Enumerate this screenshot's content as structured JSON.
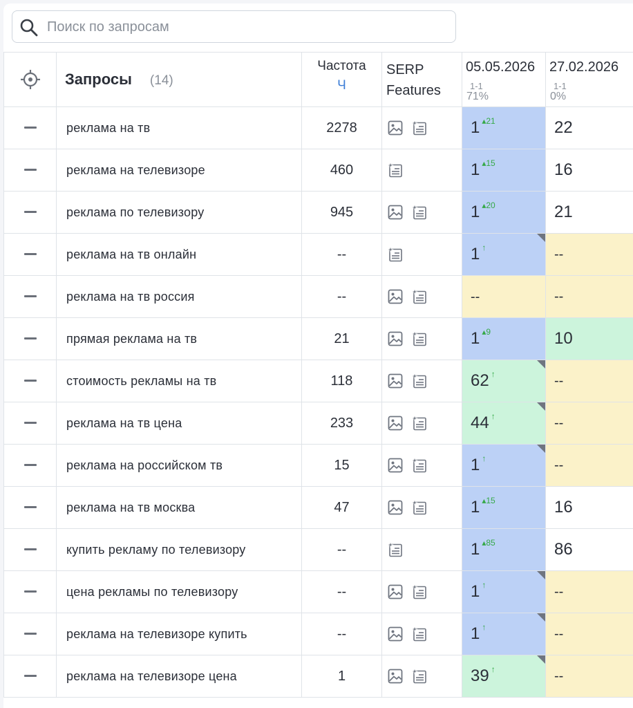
{
  "search": {
    "placeholder": "Поиск по запросам",
    "icon": "search-icon"
  },
  "header": {
    "queries_title": "Запросы",
    "queries_count": "(14)",
    "frequency_label": "Частота",
    "frequency_sub": "Ч",
    "serp_line1": "SERP",
    "serp_line2": "Features",
    "dates": [
      {
        "date": "05.05.2026",
        "range": "1-1",
        "percent": "71%"
      },
      {
        "date": "27.02.2026",
        "range": "1-1",
        "percent": "0%"
      }
    ]
  },
  "colors": {
    "blue_cell": "#bcd1f6",
    "green_cell": "#ccf4dc",
    "yellow_cell": "#fbf2c9",
    "delta": "#36a948",
    "link": "#3f7fd7"
  },
  "rows": [
    {
      "query": "реклама на тв",
      "freq": "2278",
      "serp": [
        "image-icon",
        "sparkle-snippet-icon"
      ],
      "p1": "1",
      "p1_delta": "▴21",
      "p1_color": "blue",
      "p1_corner": false,
      "p2": "22",
      "p2_color": "white"
    },
    {
      "query": "реклама на телевизоре",
      "freq": "460",
      "serp": [
        "sparkle-snippet-icon"
      ],
      "p1": "1",
      "p1_delta": "▴15",
      "p1_color": "blue",
      "p1_corner": false,
      "p2": "16",
      "p2_color": "white"
    },
    {
      "query": "реклама по телевизору",
      "freq": "945",
      "serp": [
        "image-icon",
        "sparkle-snippet-icon"
      ],
      "p1": "1",
      "p1_delta": "▴20",
      "p1_color": "blue",
      "p1_corner": false,
      "p2": "21",
      "p2_color": "white"
    },
    {
      "query": "реклама на тв онлайн",
      "freq": "--",
      "serp": [
        "sparkle-snippet-icon"
      ],
      "p1": "1",
      "p1_delta": "↑",
      "p1_color": "blue",
      "p1_corner": true,
      "p2": "--",
      "p2_color": "yellow"
    },
    {
      "query": "реклама на тв россия",
      "freq": "--",
      "serp": [
        "image-icon",
        "sparkle-snippet-icon"
      ],
      "p1": "--",
      "p1_delta": "",
      "p1_color": "yellow",
      "p1_corner": false,
      "p2": "--",
      "p2_color": "yellow"
    },
    {
      "query": "прямая реклама на тв",
      "freq": "21",
      "serp": [
        "image-icon",
        "sparkle-snippet-icon"
      ],
      "p1": "1",
      "p1_delta": "▴9",
      "p1_color": "blue",
      "p1_corner": false,
      "p2": "10",
      "p2_color": "green"
    },
    {
      "query": "стоимость рекламы на тв",
      "freq": "118",
      "serp": [
        "image-icon",
        "sparkle-snippet-icon"
      ],
      "p1": "62",
      "p1_delta": "↑",
      "p1_color": "green",
      "p1_corner": true,
      "p2": "--",
      "p2_color": "yellow"
    },
    {
      "query": "реклама на тв цена",
      "freq": "233",
      "serp": [
        "image-icon",
        "sparkle-snippet-icon"
      ],
      "p1": "44",
      "p1_delta": "↑",
      "p1_color": "green",
      "p1_corner": true,
      "p2": "--",
      "p2_color": "yellow"
    },
    {
      "query": "реклама на российском тв",
      "freq": "15",
      "serp": [
        "image-icon",
        "sparkle-snippet-icon"
      ],
      "p1": "1",
      "p1_delta": "↑",
      "p1_color": "blue",
      "p1_corner": true,
      "p2": "--",
      "p2_color": "yellow"
    },
    {
      "query": "реклама на тв москва",
      "freq": "47",
      "serp": [
        "image-icon",
        "sparkle-snippet-icon"
      ],
      "p1": "1",
      "p1_delta": "▴15",
      "p1_color": "blue",
      "p1_corner": false,
      "p2": "16",
      "p2_color": "white"
    },
    {
      "query": "купить рекламу по телевизору",
      "freq": "--",
      "serp": [
        "sparkle-snippet-icon"
      ],
      "p1": "1",
      "p1_delta": "▴85",
      "p1_color": "blue",
      "p1_corner": false,
      "p2": "86",
      "p2_color": "white"
    },
    {
      "query": "цена рекламы по телевизору",
      "freq": "--",
      "serp": [
        "image-icon",
        "sparkle-snippet-icon"
      ],
      "p1": "1",
      "p1_delta": "↑",
      "p1_color": "blue",
      "p1_corner": true,
      "p2": "--",
      "p2_color": "yellow"
    },
    {
      "query": "реклама на телевизоре купить",
      "freq": "--",
      "serp": [
        "image-icon",
        "sparkle-snippet-icon"
      ],
      "p1": "1",
      "p1_delta": "↑",
      "p1_color": "blue",
      "p1_corner": true,
      "p2": "--",
      "p2_color": "yellow"
    },
    {
      "query": "реклама на телевизоре цена",
      "freq": "1",
      "serp": [
        "image-icon",
        "sparkle-snippet-icon"
      ],
      "p1": "39",
      "p1_delta": "↑",
      "p1_color": "green",
      "p1_corner": true,
      "p2": "--",
      "p2_color": "yellow"
    }
  ]
}
